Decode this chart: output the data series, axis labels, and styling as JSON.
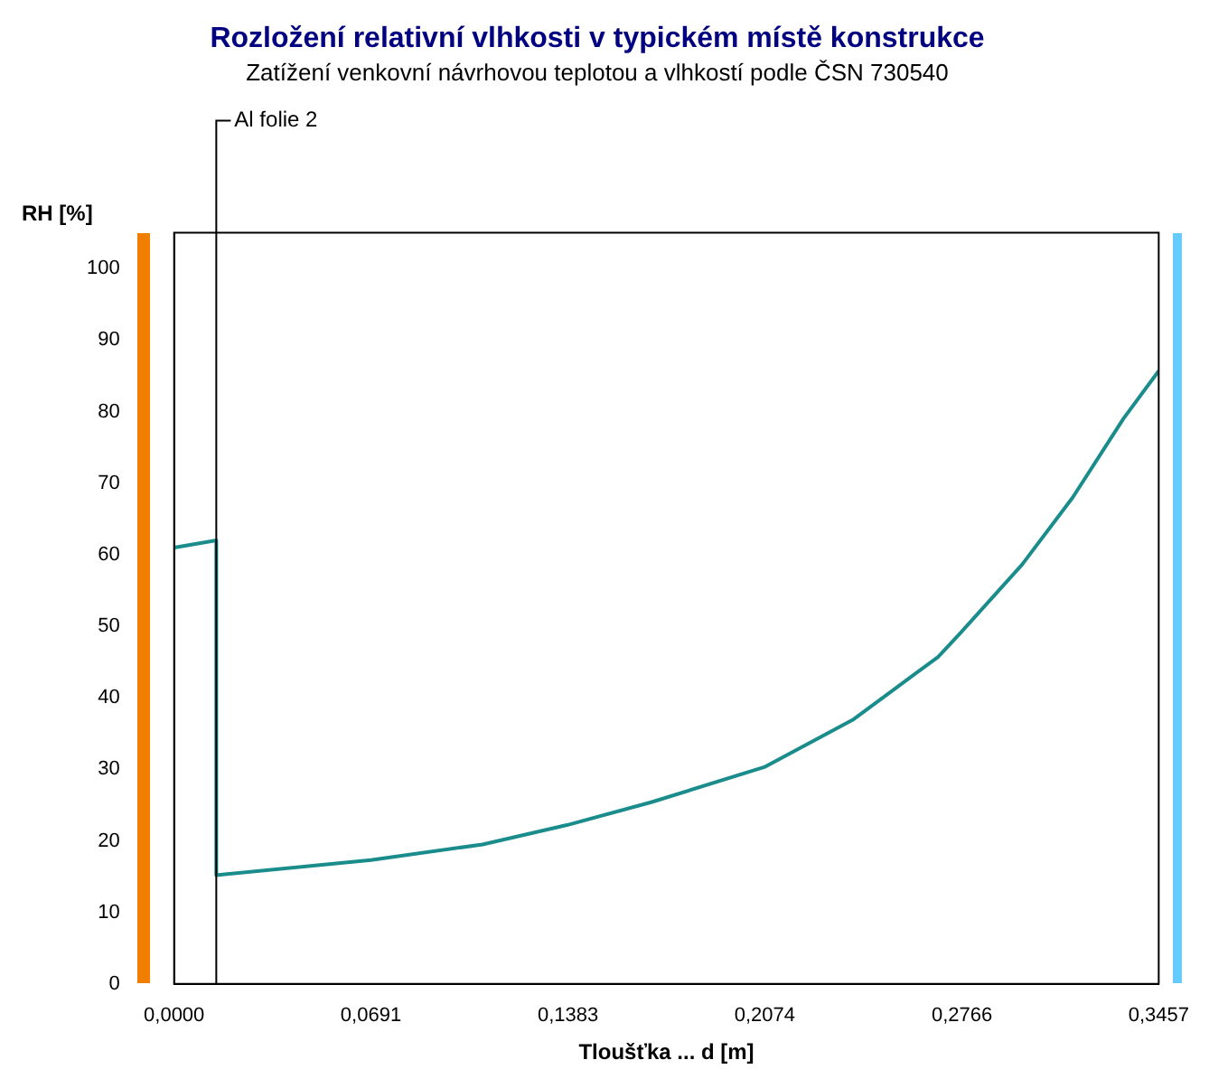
{
  "chart_data": {
    "type": "line",
    "title": "Rozložení relativní vlhkosti v typickém místě konstrukce",
    "subtitle": "Zatížení venkovní návrhovou teplotou a vlhkostí podle ČSN 730540",
    "xlabel": "Tloušťka ... d [m]",
    "ylabel": "RH [%]",
    "series": [
      {
        "color": "#1a8c8c",
        "x": [
          0,
          0.0148,
          0.0148,
          0.0691,
          0.1083,
          0.1379,
          0.1675,
          0.2072,
          0.2386,
          0.2682,
          0.2764,
          0.2977,
          0.3155,
          0.3333,
          0.3457
        ],
        "values": [
          61,
          62,
          15.2,
          17.3,
          19.5,
          22.2,
          25.4,
          30.3,
          37,
          45.7,
          49.2,
          58.6,
          68,
          79,
          85.7
        ]
      }
    ],
    "xlim": [
      0,
      0.3457
    ],
    "xticks": [
      {
        "value": 0,
        "label": "0,0000"
      },
      {
        "value": 0.0691,
        "label": "0,0691"
      },
      {
        "value": 0.1383,
        "label": "0,1383"
      },
      {
        "value": 0.2074,
        "label": "0,2074"
      },
      {
        "value": 0.2766,
        "label": "0,2766"
      },
      {
        "value": 0.3457,
        "label": "0,3457"
      }
    ],
    "ylim": [
      0,
      105
    ],
    "yticks": [
      0,
      10,
      20,
      30,
      40,
      50,
      60,
      70,
      80,
      90,
      100
    ],
    "ref_lines": [
      {
        "axis": "x",
        "value": 0.0148,
        "label": "Al folie 2",
        "color": "#000000"
      }
    ],
    "marker": "none",
    "line_style": "solid"
  }
}
